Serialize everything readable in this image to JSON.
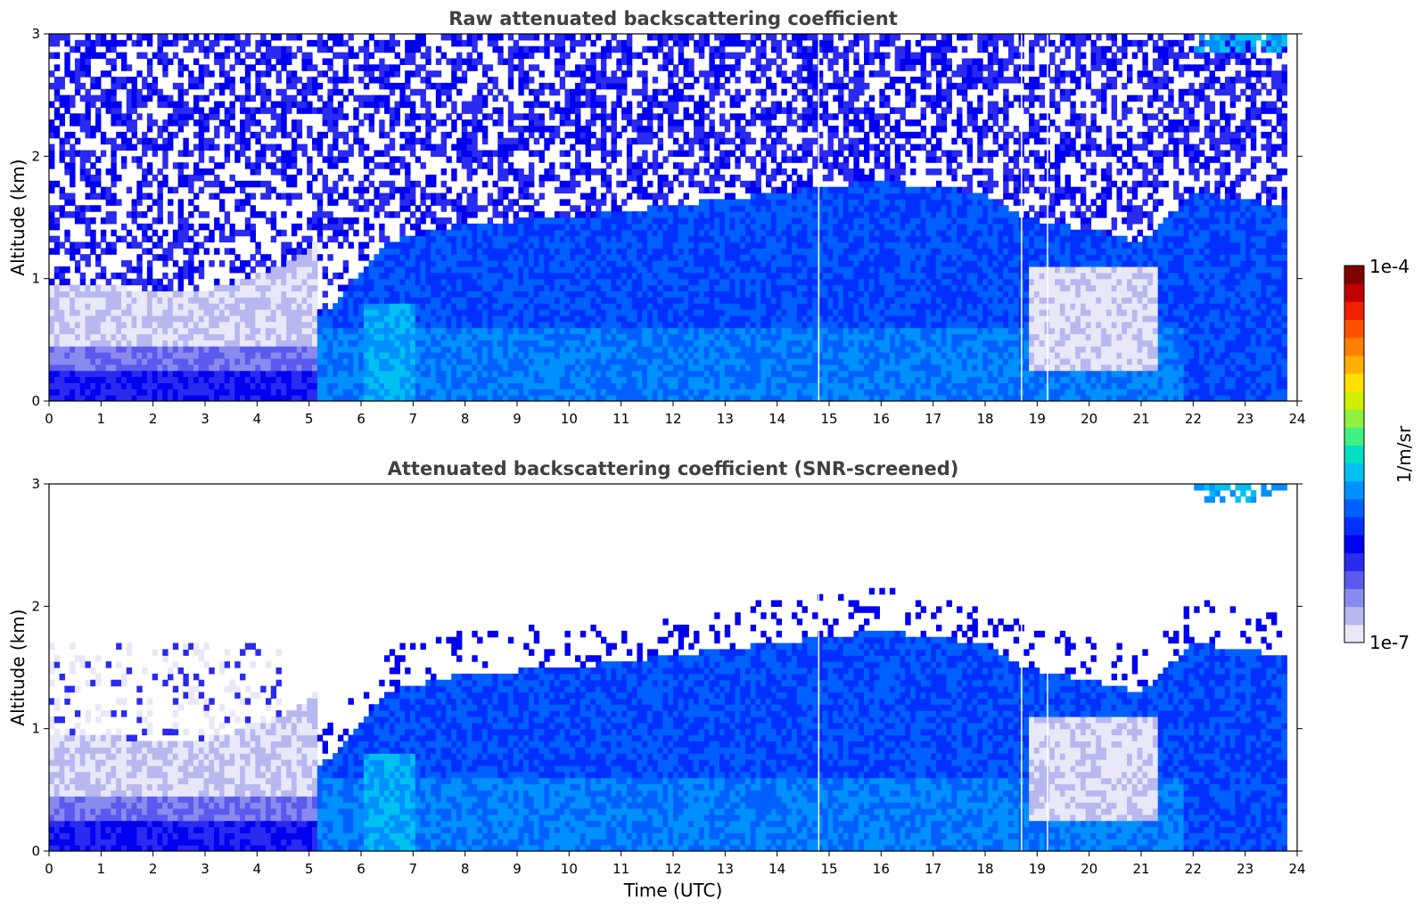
{
  "chart_data": [
    {
      "type": "heatmap",
      "title": "Raw attenuated backscattering coefficient",
      "xlabel": "",
      "ylabel": "Altitude (km)",
      "xlim": [
        0,
        24
      ],
      "ylim": [
        0,
        3
      ],
      "xticks": [
        "0",
        "1",
        "2",
        "3",
        "4",
        "5",
        "6",
        "7",
        "8",
        "9",
        "10",
        "11",
        "12",
        "13",
        "14",
        "15",
        "16",
        "17",
        "18",
        "19",
        "20",
        "21",
        "22",
        "23",
        "24"
      ],
      "yticks": [
        "0",
        "1",
        "2",
        "3"
      ],
      "screened": false,
      "data_end_time": 23.8,
      "gap_times": [
        14.8,
        18.7,
        19.2
      ],
      "features": {
        "boundary_layer_top_km": [
          [
            0,
            0.35
          ],
          [
            3,
            0.3
          ],
          [
            4.5,
            0.5
          ],
          [
            5.5,
            0.8
          ],
          [
            6.5,
            1.3
          ],
          [
            8,
            1.45
          ],
          [
            10,
            1.5
          ],
          [
            12,
            1.6
          ],
          [
            14,
            1.7
          ],
          [
            16,
            1.8
          ],
          [
            18,
            1.7
          ],
          [
            18.7,
            1.5
          ],
          [
            20,
            1.4
          ],
          [
            21,
            1.3
          ],
          [
            22,
            1.7
          ],
          [
            23.8,
            1.6
          ]
        ],
        "cloud_top_band_km": [
          2.8,
          3.0
        ],
        "cloud_top_band_start_time": 22.0
      }
    },
    {
      "type": "heatmap",
      "title": "Attenuated backscattering coefficient (SNR-screened)",
      "xlabel": "Time (UTC)",
      "ylabel": "Altitude (km)",
      "xlim": [
        0,
        24
      ],
      "ylim": [
        0,
        3
      ],
      "xticks": [
        "0",
        "1",
        "2",
        "3",
        "4",
        "5",
        "6",
        "7",
        "8",
        "9",
        "10",
        "11",
        "12",
        "13",
        "14",
        "15",
        "16",
        "17",
        "18",
        "19",
        "20",
        "21",
        "22",
        "23",
        "24"
      ],
      "yticks": [
        "0",
        "1",
        "2",
        "3"
      ],
      "screened": true,
      "data_end_time": 23.8,
      "gap_times": [
        14.8,
        18.7,
        19.2
      ]
    }
  ],
  "colorbar": {
    "min_label": "1e-7",
    "max_label": "1e-4",
    "unit_label": "1/m/sr",
    "scale": "log",
    "colormap": [
      "#e8e8f8",
      "#b8b8f0",
      "#8a8aee",
      "#5a5aee",
      "#2a2af0",
      "#0000f0",
      "#0030ff",
      "#0060ff",
      "#0090ff",
      "#00c0f0",
      "#00e0c0",
      "#40f080",
      "#90f040",
      "#d0f000",
      "#ffe000",
      "#ffb000",
      "#ff8000",
      "#ff5000",
      "#f02000",
      "#c00000",
      "#800000"
    ]
  }
}
